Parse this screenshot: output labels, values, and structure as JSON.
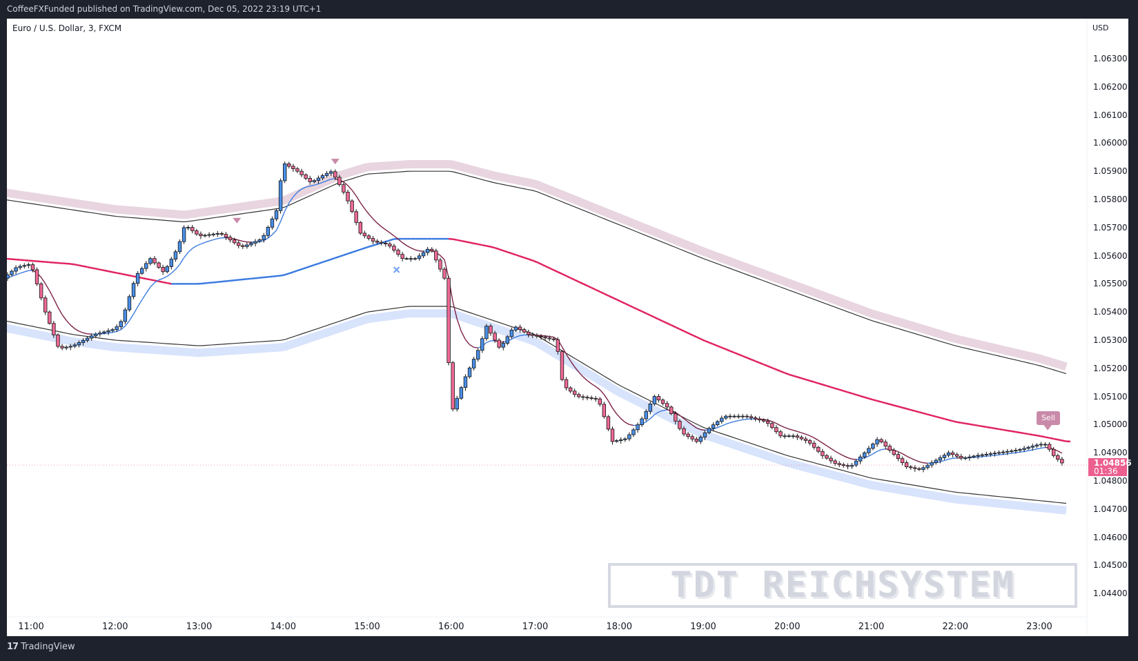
{
  "header": {
    "published": "CoffeeFXFunded published on TradingView.com, Dec 05, 2022 23:19 UTC+1"
  },
  "chart": {
    "symbol": "Euro / U.S. Dollar, 3, FXCM",
    "currency": "USD",
    "price_ticks": [
      "1.06300",
      "1.06200",
      "1.06100",
      "1.06000",
      "1.05900",
      "1.05800",
      "1.05700",
      "1.05600",
      "1.05500",
      "1.05400",
      "1.05300",
      "1.05200",
      "1.05100",
      "1.05000",
      "1.04900",
      "1.04800",
      "1.04700",
      "1.04600",
      "1.04500",
      "1.04400"
    ],
    "time_ticks": [
      "11:00",
      "12:00",
      "13:00",
      "14:00",
      "15:00",
      "16:00",
      "17:00",
      "18:00",
      "19:00",
      "20:00",
      "21:00",
      "22:00",
      "23:00"
    ],
    "last_price": "1.04856",
    "countdown": "01:36",
    "sell_label": "Sell",
    "watermark": "TDT REICHSYSTEM",
    "colors": {
      "bull": "#4a8fe7",
      "bear": "#ef6a95",
      "ma": "#e0235f",
      "ma_up": "#3b7be0",
      "fast_down": "#7a1f45",
      "fast_up": "#3b7be0",
      "upper_band": "#e8d5df",
      "lower_band": "#d8e3fc",
      "last": "#ec5f8e"
    }
  },
  "chart_data": {
    "type": "candlestick",
    "timeframe_minutes": 3,
    "close_anchors": [
      [
        10.67,
        1.0552
      ],
      [
        10.83,
        1.0556
      ],
      [
        11.0,
        1.0557
      ],
      [
        11.17,
        1.054
      ],
      [
        11.33,
        1.0527
      ],
      [
        11.5,
        1.0528
      ],
      [
        11.75,
        1.0532
      ],
      [
        12.0,
        1.0534
      ],
      [
        12.08,
        1.0537
      ],
      [
        12.25,
        1.0553
      ],
      [
        12.42,
        1.0559
      ],
      [
        12.58,
        1.0554
      ],
      [
        12.75,
        1.0563
      ],
      [
        12.83,
        1.0571
      ],
      [
        13.0,
        1.0567
      ],
      [
        13.25,
        1.0568
      ],
      [
        13.5,
        1.0563
      ],
      [
        13.75,
        1.0566
      ],
      [
        13.92,
        1.0576
      ],
      [
        14.0,
        1.0593
      ],
      [
        14.17,
        1.059
      ],
      [
        14.33,
        1.0586
      ],
      [
        14.5,
        1.0589
      ],
      [
        14.58,
        1.059
      ],
      [
        14.75,
        1.0581
      ],
      [
        14.92,
        1.0568
      ],
      [
        15.08,
        1.0565
      ],
      [
        15.25,
        1.0564
      ],
      [
        15.42,
        1.0559
      ],
      [
        15.58,
        1.0559
      ],
      [
        15.75,
        1.0563
      ],
      [
        15.92,
        1.0552
      ],
      [
        16.0,
        1.0504
      ],
      [
        16.17,
        1.0517
      ],
      [
        16.33,
        1.0527
      ],
      [
        16.42,
        1.0535
      ],
      [
        16.58,
        1.0527
      ],
      [
        16.75,
        1.0535
      ],
      [
        16.92,
        1.0532
      ],
      [
        17.08,
        1.0531
      ],
      [
        17.25,
        1.053
      ],
      [
        17.33,
        1.0514
      ],
      [
        17.5,
        1.051
      ],
      [
        17.75,
        1.0509
      ],
      [
        17.92,
        1.0494
      ],
      [
        18.08,
        1.0495
      ],
      [
        18.25,
        1.0501
      ],
      [
        18.42,
        1.051
      ],
      [
        18.58,
        1.0506
      ],
      [
        18.75,
        1.0497
      ],
      [
        18.92,
        1.0494
      ],
      [
        19.08,
        1.0499
      ],
      [
        19.25,
        1.0503
      ],
      [
        19.5,
        1.0503
      ],
      [
        19.75,
        1.0501
      ],
      [
        19.92,
        1.0496
      ],
      [
        20.08,
        1.0496
      ],
      [
        20.25,
        1.0494
      ],
      [
        20.42,
        1.0489
      ],
      [
        20.58,
        1.0486
      ],
      [
        20.75,
        1.0485
      ],
      [
        20.92,
        1.049
      ],
      [
        21.08,
        1.0495
      ],
      [
        21.25,
        1.049
      ],
      [
        21.42,
        1.0485
      ],
      [
        21.58,
        1.0484
      ],
      [
        21.75,
        1.0487
      ],
      [
        21.92,
        1.049
      ],
      [
        22.08,
        1.0488
      ],
      [
        22.25,
        1.0489
      ],
      [
        22.5,
        1.049
      ],
      [
        22.75,
        1.0491
      ],
      [
        23.0,
        1.0493
      ],
      [
        23.08,
        1.0493
      ],
      [
        23.17,
        1.0489
      ],
      [
        23.3,
        1.04856
      ]
    ],
    "upper_band": [
      [
        10.67,
        1.058
      ],
      [
        12.0,
        1.0574
      ],
      [
        12.83,
        1.0572
      ],
      [
        14.0,
        1.0577
      ],
      [
        14.67,
        1.0586
      ],
      [
        15.0,
        1.0589
      ],
      [
        15.5,
        1.059
      ],
      [
        16.0,
        1.059
      ],
      [
        16.5,
        1.0586
      ],
      [
        17.0,
        1.0583
      ],
      [
        18.0,
        1.0571
      ],
      [
        19.0,
        1.0559
      ],
      [
        20.0,
        1.0548
      ],
      [
        21.0,
        1.0537
      ],
      [
        22.0,
        1.0528
      ],
      [
        23.0,
        1.0521
      ],
      [
        23.33,
        1.0518
      ]
    ],
    "lower_band": [
      [
        10.67,
        1.0537
      ],
      [
        11.5,
        1.0532
      ],
      [
        12.0,
        1.053
      ],
      [
        13.0,
        1.0528
      ],
      [
        14.0,
        1.053
      ],
      [
        15.0,
        1.054
      ],
      [
        15.5,
        1.0542
      ],
      [
        16.0,
        1.0542
      ],
      [
        17.0,
        1.0532
      ],
      [
        18.0,
        1.0514
      ],
      [
        19.0,
        1.0499
      ],
      [
        20.0,
        1.0489
      ],
      [
        21.0,
        1.0481
      ],
      [
        22.0,
        1.0476
      ],
      [
        23.0,
        1.0473
      ],
      [
        23.33,
        1.0472
      ]
    ],
    "moving_average": [
      [
        10.67,
        1.0559
      ],
      [
        11.5,
        1.0557
      ],
      [
        12.0,
        1.0554
      ],
      [
        12.67,
        1.055
      ],
      [
        13.0,
        1.055
      ],
      [
        14.0,
        1.0553
      ],
      [
        15.0,
        1.0563
      ],
      [
        15.33,
        1.0566
      ],
      [
        16.0,
        1.0566
      ],
      [
        16.5,
        1.0563
      ],
      [
        17.0,
        1.0558
      ],
      [
        18.0,
        1.0544
      ],
      [
        19.0,
        1.053
      ],
      [
        20.0,
        1.0518
      ],
      [
        21.0,
        1.0509
      ],
      [
        22.0,
        1.0501
      ],
      [
        23.0,
        1.0496
      ],
      [
        23.33,
        1.0494
      ]
    ],
    "signals": [
      {
        "type": "sell-triangle",
        "time": 13.45,
        "price": 1.057
      },
      {
        "type": "sell-triangle",
        "time": 14.62,
        "price": 1.0591
      },
      {
        "type": "sell-triangle",
        "time": 23.1,
        "price": 1.04965
      },
      {
        "type": "cross",
        "time": 15.35,
        "price": 1.0555
      }
    ],
    "ylim": [
      1.0435,
      1.0638
    ],
    "xlim": [
      10.62,
      23.5
    ]
  }
}
